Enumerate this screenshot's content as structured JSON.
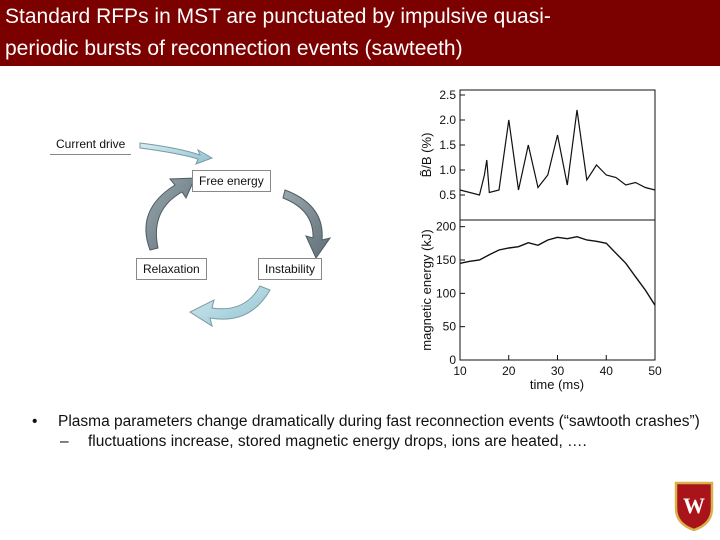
{
  "slide": {
    "title_lines": [
      "Standard RFPs in MST are punctuated by impulsive quasi-",
      "periodic bursts of reconnection events (sawteeth)"
    ],
    "colors": {
      "title_bar": "#7b0000",
      "arrow_dark": "#6f7f86",
      "arrow_light": "#a9d2dc"
    }
  },
  "cycle_diagram": {
    "current_drive": "Current drive",
    "free_energy": "Free energy",
    "instability": "Instability",
    "relaxation": "Relaxation"
  },
  "chart_data": [
    {
      "type": "line",
      "ylabel": "B̃/B (%)",
      "ylim": [
        0,
        2.6
      ],
      "yticks": [
        "0.5",
        "1.0",
        "1.5",
        "2.0",
        "2.5"
      ],
      "series": [
        {
          "x": [
            10,
            12,
            14,
            15,
            15.5,
            16,
            18,
            20,
            22,
            24,
            26,
            28,
            30,
            32,
            34,
            36,
            38,
            40,
            42,
            44,
            46,
            48,
            50
          ],
          "values": [
            0.6,
            0.55,
            0.5,
            0.9,
            1.2,
            0.55,
            0.6,
            2.0,
            0.6,
            1.5,
            0.65,
            0.9,
            1.7,
            0.7,
            2.2,
            0.8,
            1.1,
            0.9,
            0.85,
            0.7,
            0.75,
            0.65,
            0.6
          ]
        }
      ]
    },
    {
      "type": "line",
      "ylabel": "magnetic energy (kJ)",
      "xlabel": "time (ms)",
      "xlim": [
        10,
        50
      ],
      "ylim": [
        0,
        210
      ],
      "xticks": [
        "10",
        "20",
        "30",
        "40",
        "50"
      ],
      "yticks": [
        "0",
        "50",
        "100",
        "150",
        "200"
      ],
      "series": [
        {
          "x": [
            10,
            12,
            14,
            16,
            18,
            20,
            22,
            24,
            26,
            28,
            30,
            32,
            34,
            36,
            38,
            40,
            42,
            44,
            46,
            48,
            50
          ],
          "values": [
            145,
            148,
            150,
            158,
            165,
            168,
            170,
            176,
            172,
            180,
            184,
            182,
            185,
            180,
            178,
            175,
            160,
            145,
            125,
            105,
            82
          ]
        }
      ]
    }
  ],
  "bullets": {
    "main": "Plasma parameters change dramatically during fast reconnection events (“sawtooth crashes”)",
    "sub": "fluctuations increase, stored magnetic energy drops, ions are heated, …."
  },
  "logo": {
    "name": "uw-crest-icon",
    "letter": "W"
  }
}
